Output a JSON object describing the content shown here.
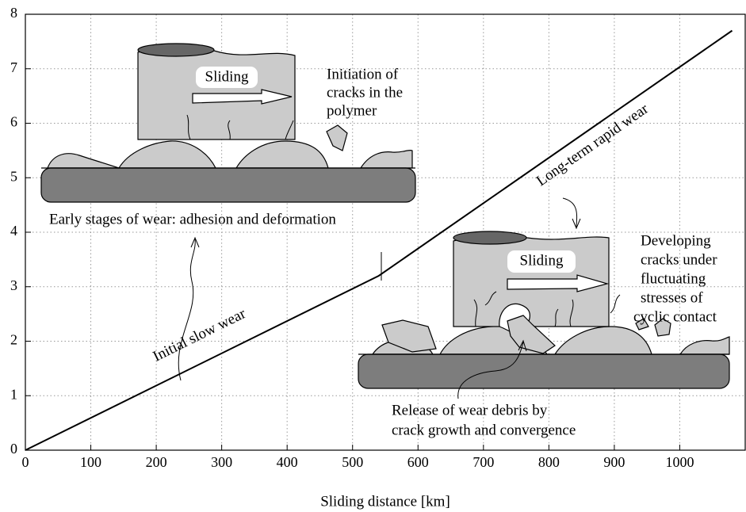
{
  "chart_data": {
    "type": "line",
    "x": [
      0,
      540,
      1080
    ],
    "values": [
      0,
      3.2,
      7.7
    ],
    "color": "#000000",
    "xlabel": "Sliding distance [km]",
    "xlim": [
      0,
      1100
    ],
    "ylim": [
      0,
      8
    ],
    "xticks": [
      0,
      100,
      200,
      300,
      400,
      500,
      600,
      700,
      800,
      900,
      1000
    ],
    "yticks": [
      0,
      1,
      2,
      3,
      4,
      5,
      6,
      7,
      8
    ],
    "grid": true,
    "annotations": {
      "sliding_1": [
        "Sliding"
      ],
      "initiation": [
        "Initiation of",
        "cracks in the",
        "polymer"
      ],
      "early": [
        "Early stages of wear: adhesion and deformation"
      ],
      "initial_slow": [
        "Initial slow wear"
      ],
      "long_term": [
        "Long-term rapid wear"
      ],
      "sliding_2": [
        "Sliding"
      ],
      "developing": [
        "Developing",
        "cracks under",
        "fluctuating",
        "stresses of",
        "cyclic contact"
      ],
      "release": [
        "Release of wear debris by",
        "crack growth and convergence"
      ]
    }
  }
}
